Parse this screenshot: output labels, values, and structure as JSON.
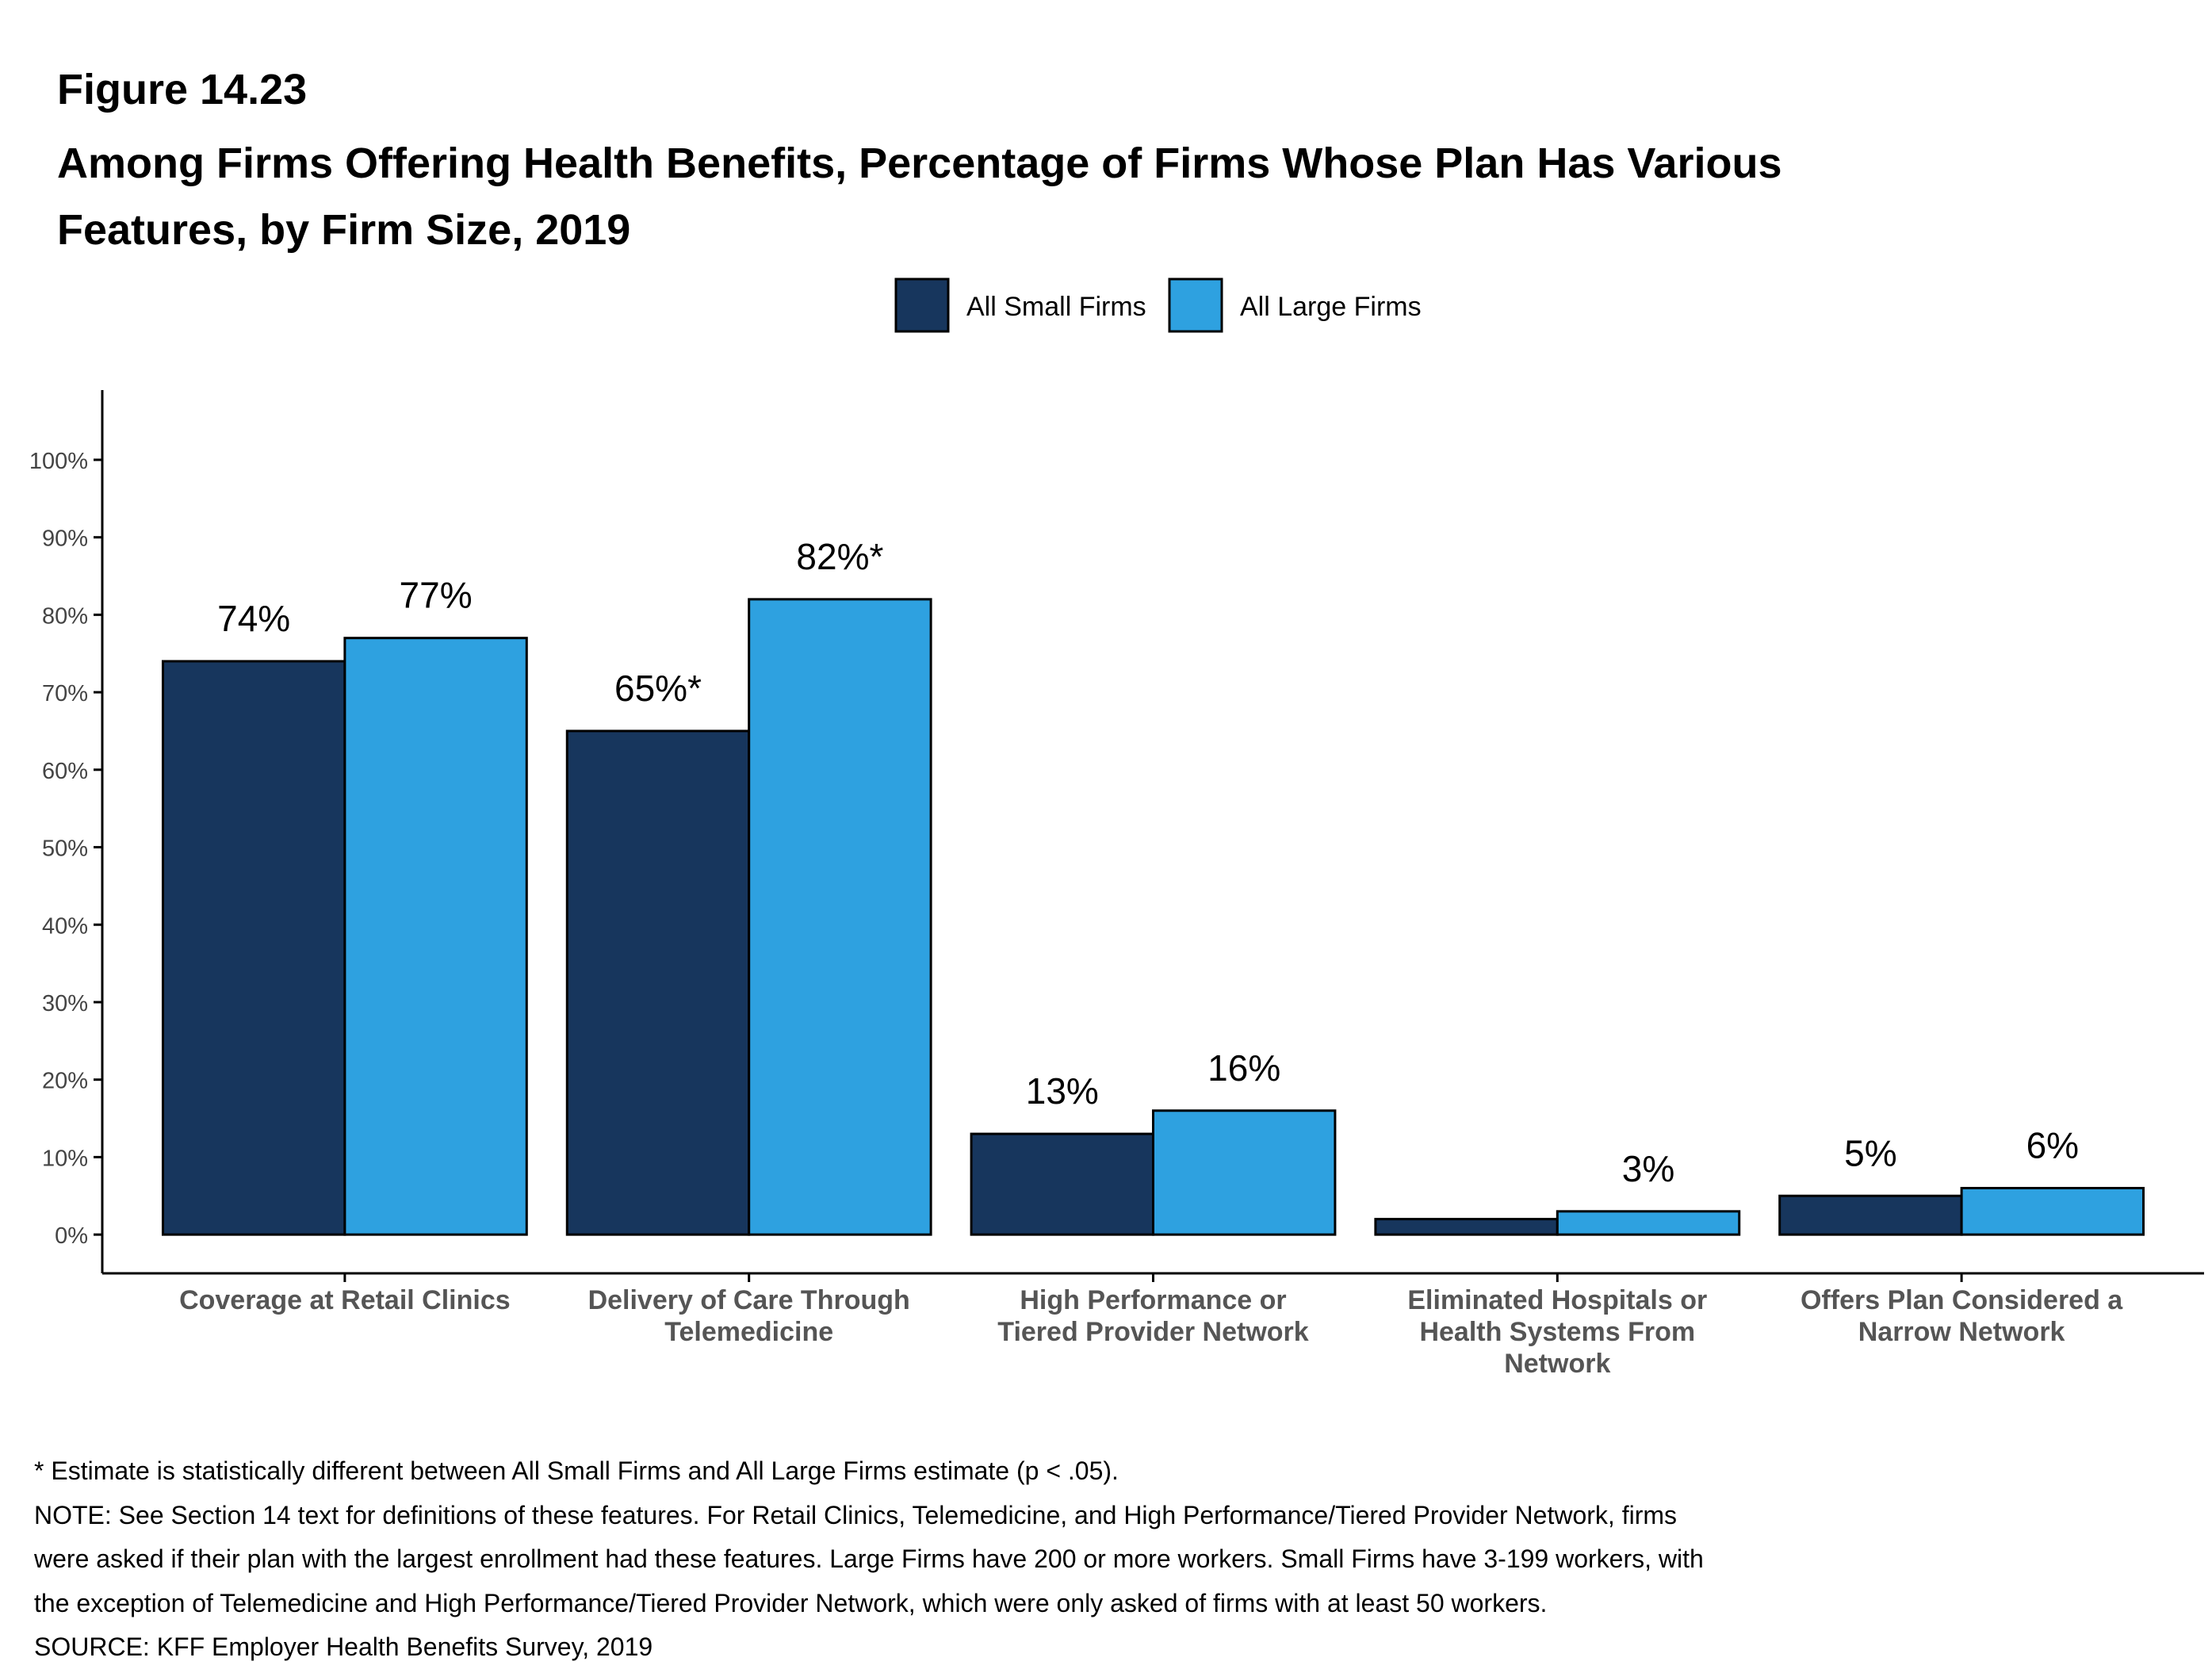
{
  "chart_data": {
    "type": "bar",
    "figure_label": "Figure 14.23",
    "title": "Among Firms Offering Health Benefits, Percentage of Firms Whose Plan Has Various Features, by Firm Size, 2019",
    "categories": [
      "Coverage at Retail Clinics",
      "Delivery of Care Through Telemedicine",
      "High Performance or Tiered Provider Network",
      "Eliminated Hospitals or Health Systems From Network",
      "Offers Plan Considered a Narrow Network"
    ],
    "series": [
      {
        "name": "All Small Firms",
        "color": "#17365d",
        "values": [
          74,
          65,
          13,
          2,
          5
        ],
        "value_labels": [
          "74%",
          "65%*",
          "13%",
          null,
          "5%"
        ]
      },
      {
        "name": "All Large Firms",
        "color": "#2ea1e0",
        "values": [
          77,
          82,
          16,
          3,
          6
        ],
        "value_labels": [
          "77%",
          "82%*",
          "16%",
          "3%",
          "6%"
        ]
      }
    ],
    "ylim": [
      -5,
      109
    ],
    "yticks": [
      {
        "value": 0,
        "label": "0%"
      },
      {
        "value": 10,
        "label": "10%"
      },
      {
        "value": 20,
        "label": "20%"
      },
      {
        "value": 30,
        "label": "30%"
      },
      {
        "value": 40,
        "label": "40%"
      },
      {
        "value": 50,
        "label": "50%"
      },
      {
        "value": 60,
        "label": "60%"
      },
      {
        "value": 70,
        "label": "70%"
      },
      {
        "value": 80,
        "label": "80%"
      },
      {
        "value": 90,
        "label": "90%"
      },
      {
        "value": 100,
        "label": "100%"
      }
    ],
    "grid": false,
    "legend": "top",
    "notes": [
      "* Estimate is statistically different between All Small Firms and All Large Firms estimate (p < .05).",
      "NOTE: See Section 14 text for definitions of these features. For Retail Clinics, Telemedicine, and High Performance/Tiered Provider Network, firms",
      "were asked if their plan with the largest enrollment had these features. Large Firms have 200 or more workers. Small Firms have 3-199 workers, with",
      "the exception of Telemedicine and High Performance/Tiered Provider Network, which were only asked of firms with at least 50 workers.",
      "SOURCE: KFF Employer Health Benefits Survey, 2019"
    ]
  }
}
